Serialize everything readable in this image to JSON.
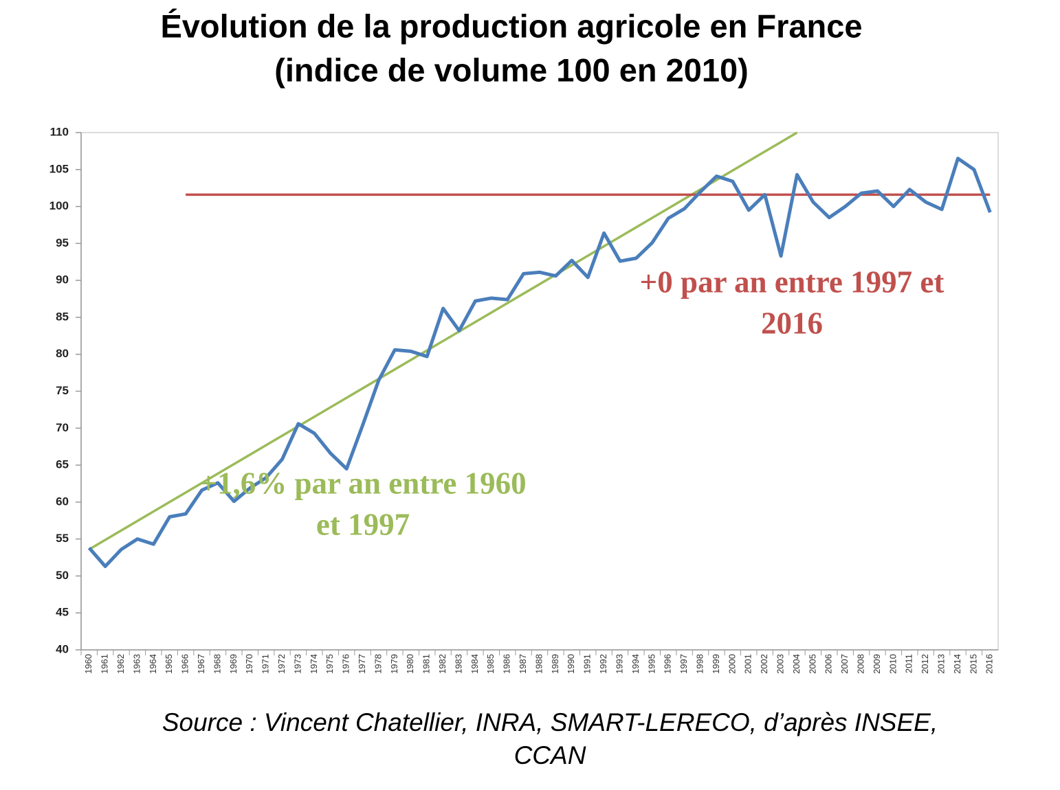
{
  "chart_data": {
    "type": "line",
    "title": [
      "Évolution de la production agricole en France",
      "(indice de volume 100 en 2010)"
    ],
    "categories": [
      "1960",
      "1961",
      "1962",
      "1963",
      "1964",
      "1965",
      "1966",
      "1967",
      "1968",
      "1969",
      "1970",
      "1971",
      "1972",
      "1973",
      "1974",
      "1975",
      "1976",
      "1977",
      "1978",
      "1979",
      "1980",
      "1981",
      "1982",
      "1983",
      "1984",
      "1985",
      "1986",
      "1987",
      "1988",
      "1989",
      "1990",
      "1991",
      "1992",
      "1993",
      "1994",
      "1995",
      "1996",
      "1997",
      "1998",
      "1999",
      "2000",
      "2001",
      "2002",
      "2003",
      "2004",
      "2005",
      "2006",
      "2007",
      "2008",
      "2009",
      "2010",
      "2011",
      "2012",
      "2013",
      "2014",
      "2015",
      "2016"
    ],
    "values": [
      53.8,
      51.3,
      53.6,
      55.0,
      54.3,
      58.0,
      58.4,
      61.6,
      62.6,
      60.1,
      61.9,
      63.3,
      65.8,
      70.6,
      69.3,
      66.6,
      64.5,
      70.4,
      76.5,
      80.6,
      80.4,
      79.7,
      86.2,
      83.2,
      87.2,
      87.6,
      87.4,
      90.9,
      91.1,
      90.6,
      92.7,
      90.4,
      96.4,
      92.6,
      93.0,
      95.1,
      98.4,
      99.7,
      102.0,
      104.1,
      103.4,
      99.5,
      101.6,
      93.3,
      104.3,
      100.6,
      98.5,
      100.0,
      101.8,
      102.1,
      100.0,
      102.3,
      100.6,
      99.6,
      106.5,
      105.0,
      99.2
    ],
    "color": "#4a7ebb",
    "ylim": [
      40,
      110
    ],
    "yticks": [
      40,
      45,
      50,
      55,
      60,
      65,
      70,
      75,
      80,
      85,
      90,
      95,
      100,
      105,
      110
    ],
    "grid": false,
    "trend_lines": [
      {
        "color": "#9bbb59",
        "categories": [
          "1960",
          "2004"
        ],
        "values": [
          53.6,
          110
        ]
      },
      {
        "color": "#c0504d",
        "categories": [
          "1966",
          "2016"
        ],
        "values": [
          101.6,
          101.6
        ]
      }
    ],
    "annotations": [
      {
        "color": "#9bbb59",
        "lines": [
          "+1,6% par an entre 1960",
          "et 1997"
        ]
      },
      {
        "color": "#c0504d",
        "lines": [
          "+0 par an entre 1997 et",
          "2016"
        ]
      }
    ],
    "source": [
      "Source : Vincent Chatellier, INRA, SMART-LERECO, d’après INSEE,",
      "CCAN"
    ]
  }
}
